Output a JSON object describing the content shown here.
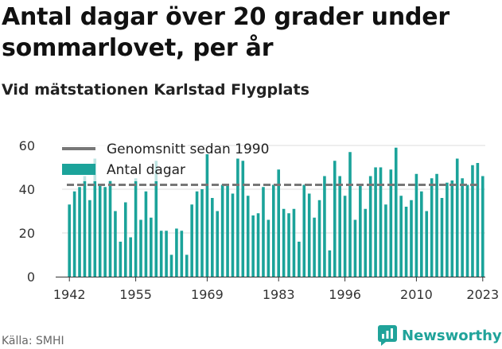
{
  "title": "Antal dagar över 20 grader under sommarlovet, per år",
  "subtitle": "Vid mätstationen Karlstad Flygplats",
  "source": "Källa: SMHI",
  "brand": "Newsworthy",
  "colors": {
    "bar": "#1ba39a",
    "average": "#777777"
  },
  "chart_data": {
    "type": "bar",
    "ylim": [
      0,
      60
    ],
    "yticks": [
      0,
      20,
      40,
      60
    ],
    "xtick_labels": [
      "1942",
      "1955",
      "1969",
      "1983",
      "1996",
      "2010",
      "2023"
    ],
    "legend": {
      "average": "Genomsnitt sedan 1990",
      "bars": "Antal dagar",
      "position": "top-left"
    },
    "average": 42,
    "categories": [
      1942,
      1943,
      1944,
      1945,
      1946,
      1947,
      1948,
      1949,
      1950,
      1951,
      1952,
      1953,
      1954,
      1955,
      1956,
      1957,
      1958,
      1959,
      1960,
      1961,
      1962,
      1963,
      1964,
      1965,
      1966,
      1967,
      1968,
      1969,
      1970,
      1971,
      1972,
      1973,
      1974,
      1975,
      1976,
      1977,
      1978,
      1979,
      1980,
      1981,
      1982,
      1983,
      1984,
      1985,
      1986,
      1987,
      1988,
      1989,
      1990,
      1991,
      1992,
      1993,
      1994,
      1995,
      1996,
      1997,
      1998,
      1999,
      2000,
      2001,
      2002,
      2003,
      2004,
      2005,
      2006,
      2007,
      2008,
      2009,
      2010,
      2011,
      2012,
      2013,
      2014,
      2015,
      2016,
      2017,
      2018,
      2019,
      2020,
      2021,
      2022,
      2023
    ],
    "values": [
      33,
      39,
      41,
      46,
      35,
      54,
      42,
      41,
      44,
      30,
      16,
      34,
      18,
      45,
      26,
      39,
      27,
      53,
      21,
      21,
      10,
      22,
      21,
      10,
      33,
      39,
      40,
      56,
      36,
      30,
      42,
      42,
      38,
      54,
      53,
      37,
      28,
      29,
      41,
      26,
      42,
      49,
      31,
      29,
      31,
      16,
      42,
      38,
      27,
      35,
      46,
      12,
      53,
      46,
      37,
      57,
      26,
      42,
      31,
      46,
      50,
      50,
      33,
      49,
      59,
      37,
      32,
      35,
      47,
      39,
      30,
      45,
      47,
      36,
      43,
      44,
      54,
      45,
      42,
      51,
      52,
      46
    ]
  }
}
